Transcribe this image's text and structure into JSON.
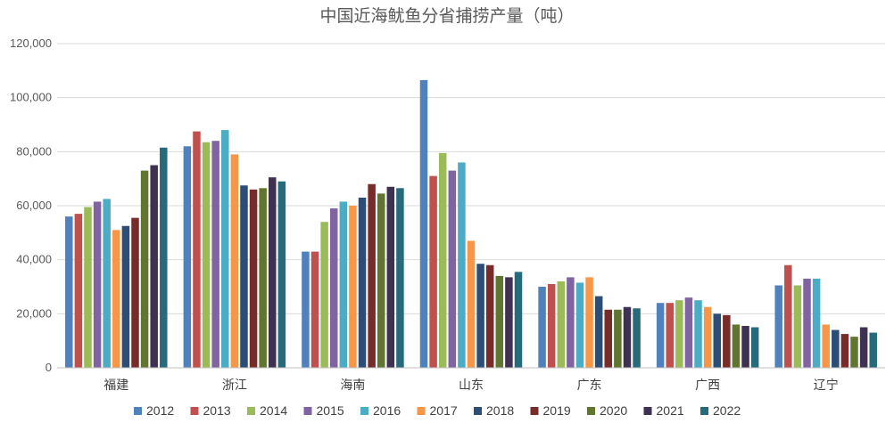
{
  "chart_data": {
    "type": "bar",
    "title": "中国近海鱿鱼分省捕捞产量（吨）",
    "categories": [
      "福建",
      "浙江",
      "海南",
      "山东",
      "广东",
      "广西",
      "辽宁"
    ],
    "ylim": [
      0,
      120000
    ],
    "yticks": [
      0,
      20000,
      40000,
      60000,
      80000,
      100000,
      120000
    ],
    "ytick_labels": [
      "0",
      "20,000",
      "40,000",
      "60,000",
      "80,000",
      "100,000",
      "120,000"
    ],
    "grid": true,
    "legend_position": "bottom",
    "series": [
      {
        "name": "2012",
        "color": "#4f81bd",
        "values": [
          56000,
          82000,
          43000,
          106500,
          30000,
          24000,
          30500
        ]
      },
      {
        "name": "2013",
        "color": "#c0504d",
        "values": [
          57000,
          87500,
          43000,
          71000,
          31000,
          24000,
          38000
        ]
      },
      {
        "name": "2014",
        "color": "#9bbb59",
        "values": [
          59500,
          83500,
          54000,
          79500,
          32000,
          25000,
          30500
        ]
      },
      {
        "name": "2015",
        "color": "#8064a2",
        "values": [
          61500,
          84000,
          59000,
          73000,
          33500,
          26000,
          33000
        ]
      },
      {
        "name": "2016",
        "color": "#4bacc6",
        "values": [
          62500,
          88000,
          61500,
          76000,
          31500,
          25000,
          33000
        ]
      },
      {
        "name": "2017",
        "color": "#f79646",
        "values": [
          51000,
          79000,
          60000,
          47000,
          33500,
          22500,
          16000
        ]
      },
      {
        "name": "2018",
        "color": "#2c4d75",
        "values": [
          52500,
          67500,
          63000,
          38500,
          26500,
          20000,
          14000
        ]
      },
      {
        "name": "2019",
        "color": "#772c2a",
        "values": [
          55500,
          66000,
          68000,
          38000,
          21500,
          19500,
          12500
        ]
      },
      {
        "name": "2020",
        "color": "#5f7530",
        "values": [
          73000,
          66500,
          64500,
          34000,
          21500,
          16000,
          11500
        ]
      },
      {
        "name": "2021",
        "color": "#3f3151",
        "values": [
          75000,
          70500,
          67000,
          33500,
          22500,
          15500,
          15000
        ]
      },
      {
        "name": "2022",
        "color": "#276a7c",
        "values": [
          81500,
          69000,
          66500,
          35500,
          22000,
          15000,
          13000
        ]
      }
    ]
  }
}
